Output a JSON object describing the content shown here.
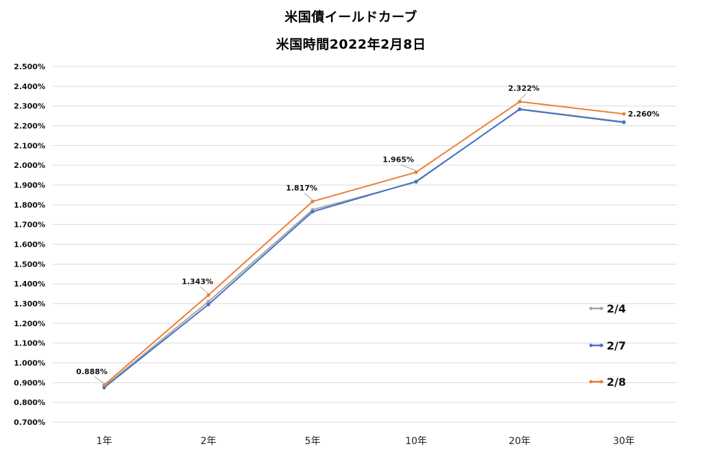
{
  "chart_data": {
    "type": "line",
    "title": "米国債イールドカーブ",
    "subtitle": "米国時間2022年2月8日",
    "categories": [
      "1年",
      "2年",
      "5年",
      "10年",
      "20年",
      "30年"
    ],
    "ylim": [
      0.7,
      2.5
    ],
    "ytick_step": 0.1,
    "ytick_labels": [
      "0.700%",
      "0.800%",
      "0.900%",
      "1.000%",
      "1.100%",
      "1.200%",
      "1.300%",
      "1.400%",
      "1.500%",
      "1.600%",
      "1.700%",
      "1.800%",
      "1.900%",
      "2.000%",
      "2.100%",
      "2.200%",
      "2.300%",
      "2.400%",
      "2.500%"
    ],
    "grid": true,
    "legend_position": "right",
    "series": [
      {
        "name": "2/4",
        "color": "#a5a5a5",
        "values": [
          0.88,
          1.31,
          1.775,
          1.915,
          2.285,
          2.22
        ]
      },
      {
        "name": "2/7",
        "color": "#4472c4",
        "values": [
          0.875,
          1.295,
          1.765,
          1.918,
          2.283,
          2.217
        ]
      },
      {
        "name": "2/8",
        "color": "#ed7d31",
        "values": [
          0.888,
          1.343,
          1.817,
          1.965,
          2.322,
          2.26
        ]
      }
    ],
    "data_labels": [
      "0.888%",
      "1.343%",
      "1.817%",
      "1.965%",
      "2.322%",
      "2.260%"
    ]
  }
}
